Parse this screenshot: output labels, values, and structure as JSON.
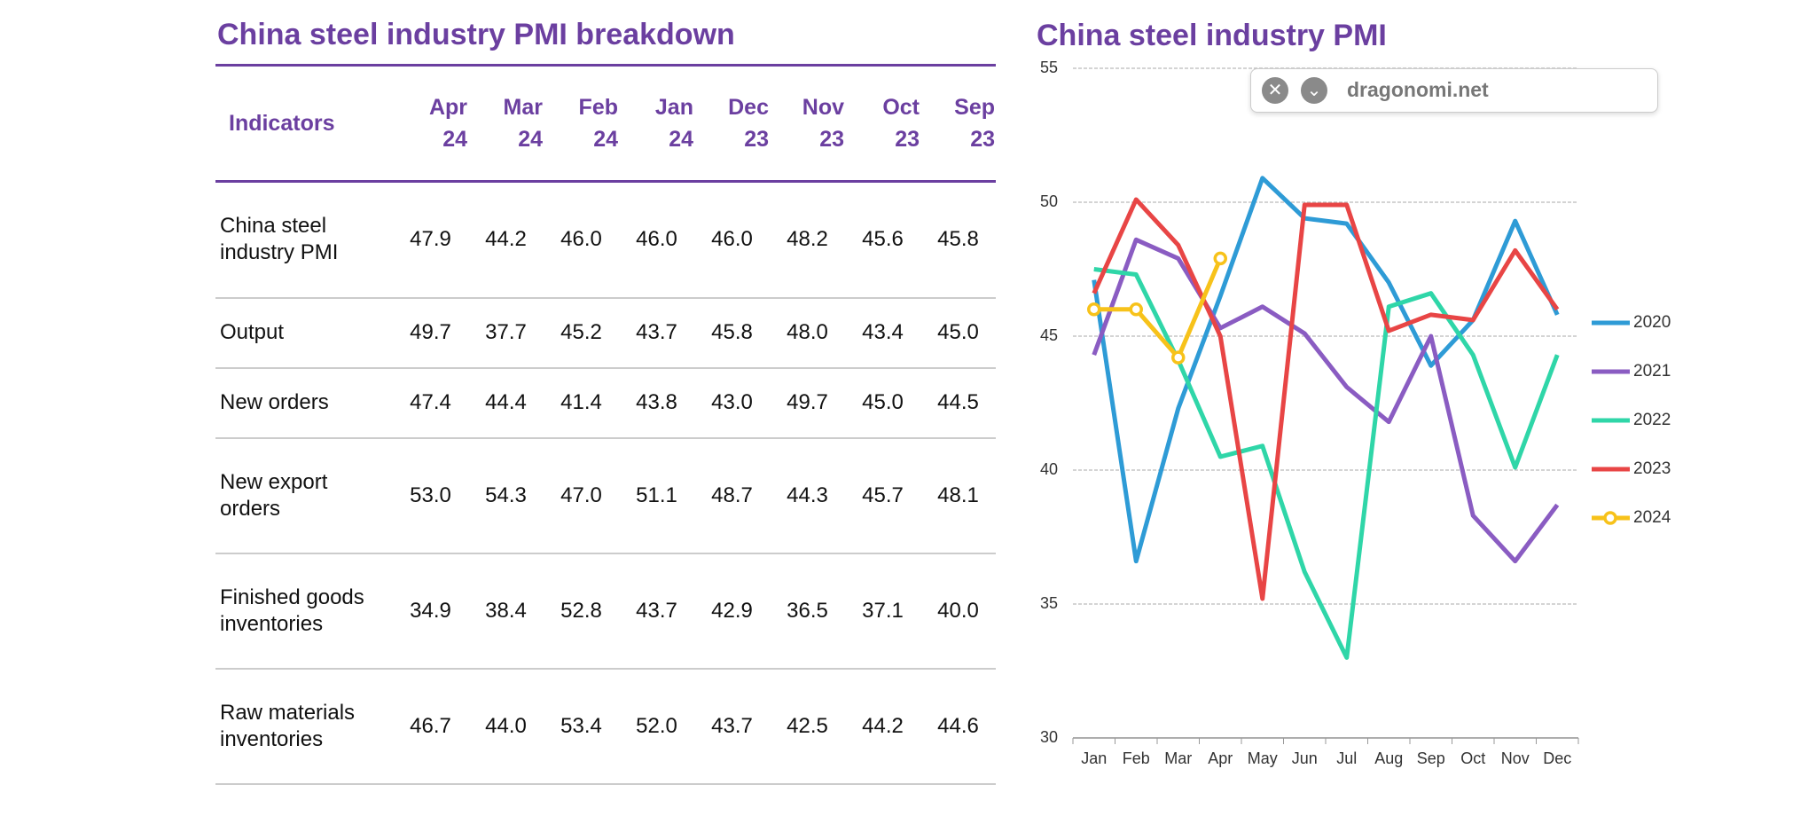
{
  "table": {
    "title": "China steel industry PMI breakdown",
    "header": [
      "Indicators",
      "Apr 24",
      "Mar 24",
      "Feb 24",
      "Jan 24",
      "Dec 23",
      "Nov 23",
      "Oct 23",
      "Sep 23"
    ],
    "rows": [
      [
        "China steel industry PMI",
        "47.9",
        "44.2",
        "46.0",
        "46.0",
        "46.0",
        "48.2",
        "45.6",
        "45.8"
      ],
      [
        "Output",
        "49.7",
        "37.7",
        "45.2",
        "43.7",
        "45.8",
        "48.0",
        "43.4",
        "45.0"
      ],
      [
        "New orders",
        "47.4",
        "44.4",
        "41.4",
        "43.8",
        "43.0",
        "49.7",
        "45.0",
        "44.5"
      ],
      [
        "New export orders",
        "53.0",
        "54.3",
        "47.0",
        "51.1",
        "48.7",
        "44.3",
        "45.7",
        "48.1"
      ],
      [
        "Finished goods inventories",
        "34.9",
        "38.4",
        "52.8",
        "43.7",
        "42.9",
        "36.5",
        "37.1",
        "40.0"
      ],
      [
        "Raw materials inventories",
        "46.7",
        "44.0",
        "53.4",
        "52.0",
        "43.7",
        "42.5",
        "44.2",
        "44.6"
      ]
    ]
  },
  "chart_data": {
    "type": "line",
    "title": "China steel industry PMI",
    "categories": [
      "Jan",
      "Feb",
      "Mar",
      "Apr",
      "May",
      "Jun",
      "Jul",
      "Aug",
      "Sep",
      "Oct",
      "Nov",
      "Dec"
    ],
    "series": [
      {
        "name": "2020",
        "color": "#2e9bd6",
        "values": [
          47.1,
          36.6,
          42.3,
          46.5,
          50.9,
          49.4,
          49.2,
          47.0,
          43.9,
          45.6,
          49.3,
          45.8
        ]
      },
      {
        "name": "2021",
        "color": "#8a5cc2",
        "values": [
          44.3,
          48.6,
          47.9,
          45.3,
          46.1,
          45.1,
          43.1,
          41.8,
          45.0,
          38.3,
          36.6,
          38.7
        ]
      },
      {
        "name": "2022",
        "color": "#2fd6a8",
        "values": [
          47.5,
          47.3,
          44.1,
          40.5,
          40.9,
          36.2,
          33.0,
          46.1,
          46.6,
          44.3,
          40.1,
          44.3
        ]
      },
      {
        "name": "2023",
        "color": "#e84545",
        "values": [
          46.6,
          50.1,
          48.4,
          45.0,
          35.2,
          49.9,
          49.9,
          45.2,
          45.8,
          45.6,
          48.2,
          46.0
        ]
      },
      {
        "name": "2024",
        "color": "#f7c21a",
        "marker": "circle",
        "values": [
          46.0,
          46.0,
          44.2,
          47.9,
          null,
          null,
          null,
          null,
          null,
          null,
          null,
          null
        ]
      }
    ],
    "ylim": [
      30,
      55
    ],
    "yticks": [
      30,
      35,
      40,
      45,
      50,
      55
    ],
    "grid": true,
    "legend": "right"
  },
  "overlay": {
    "text": "dragonomi.net"
  }
}
